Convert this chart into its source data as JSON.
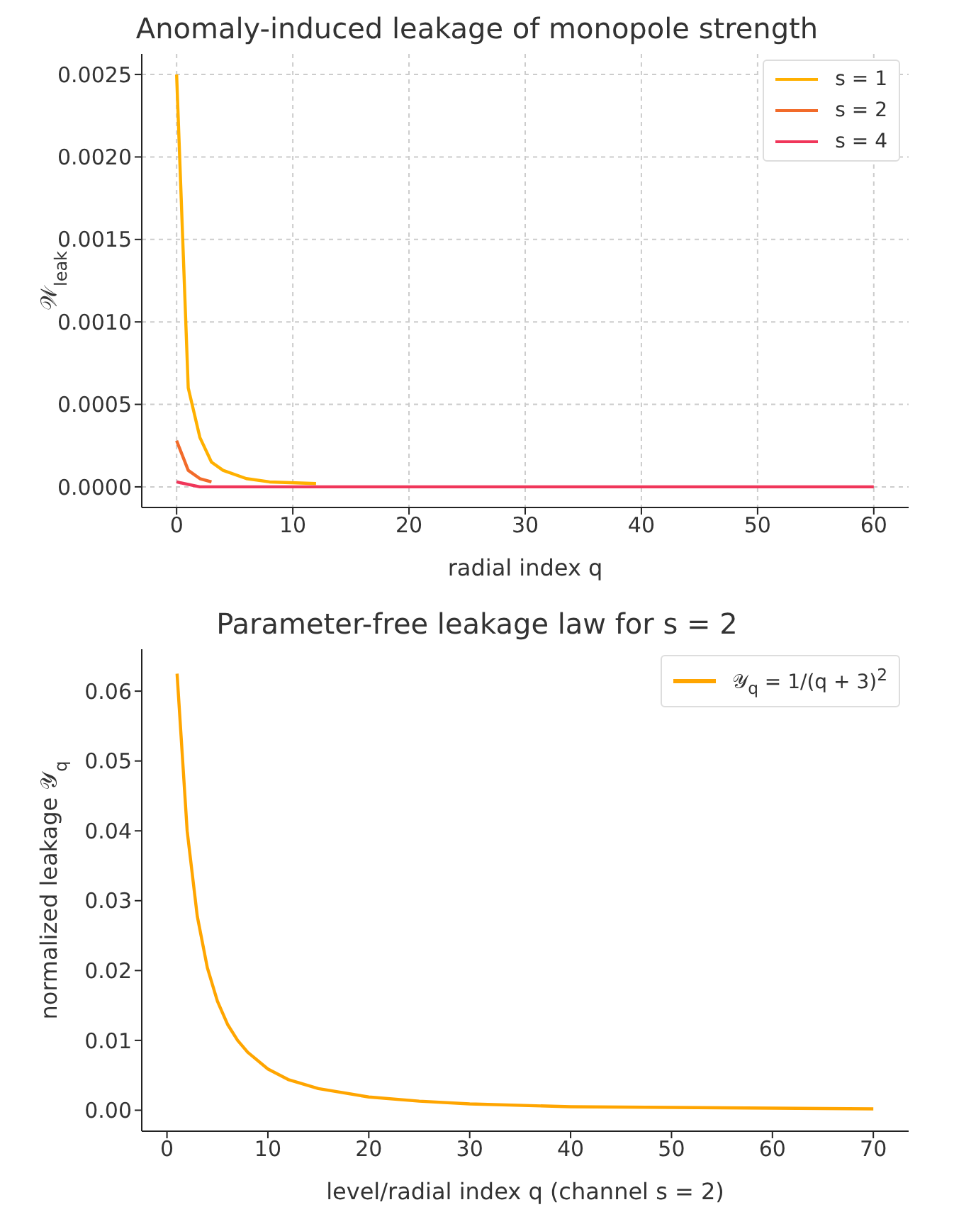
{
  "chart_data": [
    {
      "type": "line",
      "title": "Anomaly-induced leakage of monopole strength",
      "xlabel": "radial index q",
      "ylabel": "𝒲$_{leak}$",
      "series": [
        {
          "name": "s = 1",
          "color": "#ffb000",
          "x": [
            0,
            1,
            2,
            3,
            4,
            6,
            8,
            12
          ],
          "values": [
            0.0025,
            0.0006,
            0.0003,
            0.00015,
            0.0001,
            5e-05,
            3e-05,
            2e-05
          ]
        },
        {
          "name": "s = 2",
          "color": "#f26b2a",
          "x": [
            0,
            1,
            2,
            3
          ],
          "values": [
            0.00028,
            0.0001,
            5e-05,
            3e-05
          ]
        },
        {
          "name": "s = 4",
          "color": "#f0365a",
          "x": [
            0,
            2,
            10,
            60
          ],
          "values": [
            3e-05,
            0,
            0,
            0
          ]
        }
      ],
      "xlim": [
        -3,
        63
      ],
      "xticks": [
        0,
        10,
        20,
        30,
        40,
        50,
        60
      ],
      "ylim": [
        -0.000125,
        0.002625
      ],
      "yticks": [
        {
          "value": 0,
          "label": "0.0000"
        },
        {
          "value": 0.0005,
          "label": "0.0005"
        },
        {
          "value": 0.001,
          "label": "0.0010"
        },
        {
          "value": 0.0015,
          "label": "0.0015"
        },
        {
          "value": 0.002,
          "label": "0.0020"
        },
        {
          "value": 0.0025,
          "label": "0.0025"
        }
      ],
      "grid": true,
      "legend": "top right",
      "marker": "none",
      "line_style": "solid"
    },
    {
      "type": "line",
      "title": "Parameter-free leakage law for s = 2",
      "xlabel": "level/radial index q  (channel s = 2)",
      "ylabel": "normalized leakage 𝒴$_{q}$",
      "series": [
        {
          "name": "𝒴$_{q}$ = 1/(q + 3)$^{2}$",
          "color": "#ffa500",
          "x": [
            1,
            2,
            3,
            4,
            5,
            6,
            7,
            8,
            10,
            12,
            15,
            20,
            25,
            30,
            40,
            50,
            60,
            70
          ],
          "values": [
            0.0625,
            0.04,
            0.0278,
            0.0204,
            0.0156,
            0.0123,
            0.01,
            0.0083,
            0.0059,
            0.0044,
            0.0031,
            0.0019,
            0.0013,
            0.0009,
            0.0005,
            0.0004,
            0.0003,
            0.0002
          ]
        }
      ],
      "xlim": [
        -2.5,
        73.5
      ],
      "xticks": [
        0,
        10,
        20,
        30,
        40,
        50,
        60,
        70
      ],
      "ylim": [
        -0.003,
        0.066
      ],
      "yticks": [
        {
          "value": 0,
          "label": "0.00"
        },
        {
          "value": 0.01,
          "label": "0.01"
        },
        {
          "value": 0.02,
          "label": "0.02"
        },
        {
          "value": 0.03,
          "label": "0.03"
        },
        {
          "value": 0.04,
          "label": "0.04"
        },
        {
          "value": 0.05,
          "label": "0.05"
        },
        {
          "value": 0.06,
          "label": "0.06"
        }
      ],
      "grid": false,
      "legend": "top right",
      "marker": "none",
      "line_style": "solid"
    }
  ]
}
